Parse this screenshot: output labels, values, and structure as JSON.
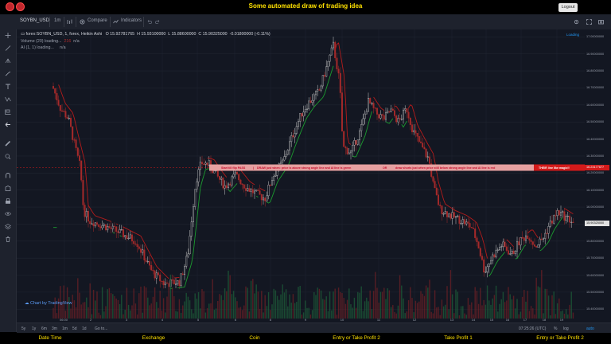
{
  "header": {
    "title": "Some automated draw of trading idea",
    "logout_label": "Logout"
  },
  "toolbar": {
    "symbol": "SOYBN_USD",
    "interval": "1m",
    "compare_label": "Compare",
    "indicators_label": "Indicators"
  },
  "legend": {
    "main": "forex:SOYBN_USD, 1, forex, Heikin Ashi",
    "open": "O 15.92781765",
    "high": "H 15.93100000",
    "low": "L 15.88600000",
    "close": "C 15.90325000",
    "change": "-0.01800000 (-0.11%)",
    "volume": "Volume (20) loading...",
    "volume_value": "216",
    "volume_na": "n/a",
    "ai": "AI (1, 1) loading...",
    "ai_na": "n/a"
  },
  "loading_label": "Loading",
  "annotation": {
    "start": "Start till flip PASS",
    "sep1": "|",
    "draw": "DRAW just when: price is above strong angle line and AI line is green",
    "or": "OR",
    "draw2": "draw shorts just when price still below strong angle line and AI line is red",
    "line_label": "THEIR line like magic!!"
  },
  "price_axis": {
    "ticks": [
      "17.00000000",
      "16.90000000",
      "16.80000000",
      "16.70000000",
      "16.60000000",
      "16.50000000",
      "16.40000000",
      "16.30000000",
      "16.20000000",
      "16.10000000",
      "16.00000000",
      "15.90000000",
      "15.80000000",
      "15.70000000",
      "15.60000000",
      "15.50000000",
      "15.40000000"
    ],
    "current": "15.90325000",
    "line_price": "16.23177677"
  },
  "time_axis": {
    "labels": [
      "06:00",
      "2",
      "3",
      "4",
      "5",
      "6",
      "8",
      "9",
      "10",
      "11",
      "12",
      "13",
      "14",
      "15",
      "16",
      "17",
      "18",
      "19"
    ]
  },
  "watermark": "Chart by TradingView",
  "bottom": {
    "ranges": [
      "5y",
      "1y",
      "6m",
      "3m",
      "1m",
      "5d",
      "1d"
    ],
    "goto": "Go to...",
    "time": "07:25:26 (UTC)",
    "pct": "%",
    "log": "log",
    "auto": "auto"
  },
  "footer": {
    "tabs": [
      "Date Time",
      "Exchange",
      "Coin",
      "Entry or Take Profit 2",
      "Take Profit 1",
      "Entry or Take Profit 2"
    ]
  },
  "colors": {
    "up": "#c9c9c9",
    "down": "#a52a2a",
    "ma_green": "#1b9b2f",
    "ma_red": "#b31b1b",
    "footer_text": "#ffe100",
    "annotation_bg": "#e6a0a0"
  }
}
